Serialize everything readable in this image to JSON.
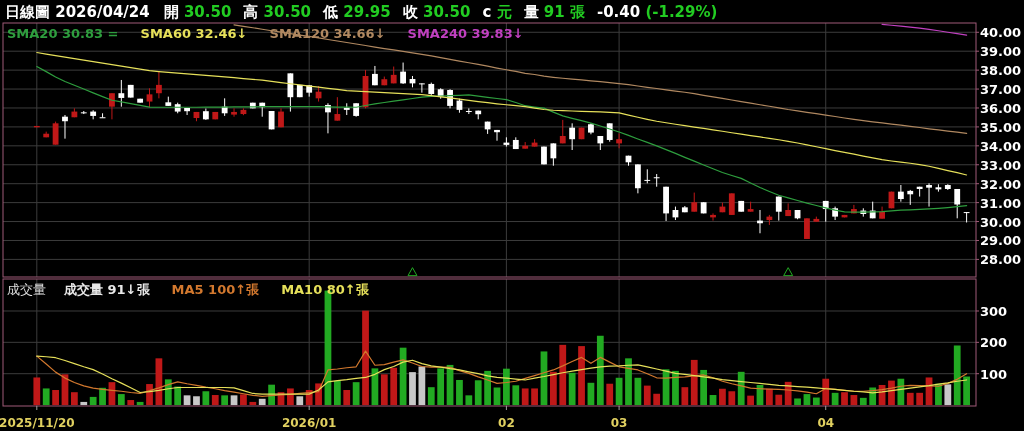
{
  "chart_data": [
    {
      "type": "candlestick",
      "title": "日線圖 2026/04/24",
      "annotations": [
        "開 30.50",
        "高 30.50",
        "低 29.95",
        "收 30.50",
        "c 元",
        "量 91 張",
        "-0.40 (-1.29%)"
      ],
      "categories": [
        "2025/11/20",
        null,
        null,
        null,
        null,
        null,
        null,
        null,
        null,
        null,
        null,
        null,
        null,
        null,
        null,
        null,
        null,
        null,
        null,
        null,
        null,
        null,
        null,
        null,
        null,
        null,
        null,
        null,
        null,
        "2026/01",
        null,
        null,
        null,
        null,
        null,
        null,
        null,
        null,
        null,
        null,
        null,
        null,
        null,
        null,
        null,
        null,
        null,
        null,
        null,
        null,
        "02",
        null,
        null,
        null,
        null,
        null,
        null,
        null,
        null,
        null,
        null,
        null,
        "03",
        null,
        null,
        null,
        null,
        null,
        null,
        null,
        null,
        null,
        null,
        null,
        null,
        null,
        null,
        null,
        null,
        null,
        null,
        null,
        null,
        null,
        "04",
        null,
        null,
        null,
        null,
        null,
        null,
        null,
        null,
        null,
        null,
        null,
        null,
        null,
        null,
        null
      ],
      "ohlc": [
        [
          34.98,
          35.05,
          34.98,
          35.05
        ],
        [
          34.45,
          34.75,
          34.45,
          34.64
        ],
        [
          34.06,
          35.28,
          34.06,
          35.19
        ],
        [
          35.54,
          35.63,
          34.38,
          35.3
        ],
        [
          35.51,
          35.98,
          35.51,
          35.81
        ],
        [
          35.77,
          35.84,
          35.68,
          35.75
        ],
        [
          35.81,
          35.88,
          35.4,
          35.58
        ],
        [
          35.51,
          35.72,
          35.5,
          35.5
        ],
        [
          36.07,
          36.78,
          35.4,
          36.78
        ],
        [
          36.78,
          37.48,
          36.07,
          36.53
        ],
        [
          37.22,
          37.22,
          36.55,
          36.55
        ],
        [
          36.49,
          36.49,
          36.28,
          36.28
        ],
        [
          36.34,
          37.04,
          36.04,
          36.72
        ],
        [
          36.78,
          37.92,
          36.51,
          37.22
        ],
        [
          36.3,
          36.6,
          36.11,
          36.11
        ],
        [
          36.2,
          36.28,
          35.72,
          35.81
        ],
        [
          36.0,
          36.0,
          35.63,
          35.83
        ],
        [
          35.47,
          35.79,
          35.3,
          35.79
        ],
        [
          35.83,
          35.97,
          35.37,
          35.4
        ],
        [
          35.4,
          35.79,
          35.4,
          35.79
        ],
        [
          36.07,
          36.51,
          35.58,
          35.72
        ],
        [
          35.65,
          35.98,
          35.54,
          35.79
        ],
        [
          35.68,
          35.98,
          35.62,
          35.9
        ],
        [
          36.28,
          36.28,
          35.98,
          35.98
        ],
        [
          36.28,
          36.28,
          35.54,
          36.04
        ],
        [
          35.84,
          35.84,
          34.87,
          34.87
        ],
        [
          34.98,
          35.98,
          34.98,
          35.81
        ],
        [
          37.83,
          37.83,
          35.81,
          36.57
        ],
        [
          37.22,
          37.22,
          36.57,
          36.57
        ],
        [
          37.2,
          37.2,
          36.6,
          36.81
        ],
        [
          36.51,
          37.16,
          36.34,
          36.86
        ],
        [
          36.16,
          36.25,
          34.66,
          35.77
        ],
        [
          35.33,
          36.57,
          35.33,
          35.68
        ],
        [
          36.02,
          36.25,
          35.63,
          35.9
        ],
        [
          36.25,
          36.25,
          35.54,
          35.58
        ],
        [
          36.04,
          38.01,
          35.98,
          37.69
        ],
        [
          37.8,
          38.22,
          37.2,
          37.2
        ],
        [
          37.2,
          37.66,
          37.2,
          37.52
        ],
        [
          37.3,
          38.19,
          37.3,
          37.75
        ],
        [
          37.92,
          38.4,
          37.27,
          37.3
        ],
        [
          37.53,
          37.69,
          37.09,
          37.3
        ],
        [
          37.3,
          37.3,
          36.81,
          37.3
        ],
        [
          37.27,
          37.34,
          36.69,
          36.74
        ],
        [
          36.99,
          37.04,
          36.49,
          36.6
        ],
        [
          36.95,
          36.99,
          35.98,
          36.11
        ],
        [
          36.39,
          36.49,
          35.75,
          35.9
        ],
        [
          35.84,
          35.98,
          35.68,
          35.84
        ],
        [
          35.86,
          35.86,
          35.4,
          35.67
        ],
        [
          35.28,
          35.28,
          34.63,
          34.87
        ],
        [
          34.84,
          34.84,
          34.27,
          34.72
        ],
        [
          34.17,
          34.45,
          33.96,
          34.05
        ],
        [
          34.31,
          34.45,
          33.83,
          33.83
        ],
        [
          33.85,
          34.2,
          33.85,
          34.01
        ],
        [
          33.96,
          34.35,
          33.96,
          34.17
        ],
        [
          33.96,
          33.96,
          33.02,
          33.02
        ],
        [
          34.13,
          34.13,
          32.95,
          33.34
        ],
        [
          34.13,
          35.37,
          34.13,
          34.52
        ],
        [
          34.96,
          35.19,
          33.78,
          34.35
        ],
        [
          34.35,
          34.96,
          34.35,
          34.96
        ],
        [
          35.14,
          35.19,
          34.61,
          34.7
        ],
        [
          34.52,
          34.52,
          33.78,
          34.13
        ],
        [
          35.19,
          35.19,
          34.22,
          34.31
        ],
        [
          34.13,
          34.66,
          33.87,
          34.35
        ],
        [
          33.48,
          33.48,
          32.95,
          33.13
        ],
        [
          33.02,
          33.02,
          31.49,
          31.76
        ],
        [
          32.2,
          32.76,
          32.02,
          32.2
        ],
        [
          32.34,
          32.51,
          31.84,
          32.34
        ],
        [
          31.84,
          31.84,
          30.03,
          30.43
        ],
        [
          30.61,
          30.79,
          30.08,
          30.22
        ],
        [
          30.75,
          30.82,
          30.49,
          30.49
        ],
        [
          30.52,
          31.53,
          30.52,
          31.02
        ],
        [
          31.02,
          31.02,
          30.43,
          30.43
        ],
        [
          30.22,
          30.43,
          30.05,
          30.35
        ],
        [
          30.49,
          31.0,
          30.49,
          30.79
        ],
        [
          30.35,
          31.49,
          30.35,
          31.49
        ],
        [
          31.09,
          31.09,
          30.52,
          30.52
        ],
        [
          30.52,
          31.05,
          30.52,
          30.66
        ],
        [
          30.05,
          30.61,
          29.38,
          29.91
        ],
        [
          30.08,
          30.35,
          29.82,
          30.26
        ],
        [
          31.32,
          31.32,
          30.05,
          30.52
        ],
        [
          30.29,
          30.96,
          30.29,
          30.61
        ],
        [
          30.61,
          30.61,
          30.12,
          30.17
        ],
        [
          29.08,
          30.17,
          29.08,
          30.17
        ],
        [
          29.99,
          30.26,
          29.99,
          30.14
        ],
        [
          31.09,
          31.09,
          29.99,
          30.66
        ],
        [
          30.7,
          30.79,
          30.08,
          30.26
        ],
        [
          30.22,
          30.35,
          30.22,
          30.35
        ],
        [
          30.43,
          30.88,
          30.43,
          30.66
        ],
        [
          30.58,
          30.7,
          30.26,
          30.4
        ],
        [
          30.58,
          31.05,
          30.17,
          30.17
        ],
        [
          30.15,
          30.79,
          30.15,
          30.52
        ],
        [
          30.7,
          31.58,
          30.7,
          31.58
        ],
        [
          31.58,
          31.93,
          31.05,
          31.19
        ],
        [
          31.62,
          31.67,
          30.88,
          31.44
        ],
        [
          31.84,
          31.84,
          31.32,
          31.72
        ],
        [
          31.93,
          32.02,
          30.79,
          31.79
        ],
        [
          31.81,
          31.97,
          31.58,
          31.7
        ],
        [
          31.93,
          31.97,
          31.67,
          31.72
        ],
        [
          31.72,
          31.72,
          30.17,
          30.9
        ],
        [
          30.5,
          30.5,
          29.95,
          30.5
        ]
      ],
      "colors": [
        "#c01818",
        "#c01818",
        "#c01818",
        "#ffffff",
        "#c01818",
        "#ffffff",
        "#ffffff",
        "#ffffff",
        "#c01818",
        "#ffffff",
        "#ffffff",
        "#ffffff",
        "#c01818",
        "#c01818",
        "#ffffff",
        "#ffffff",
        "#ffffff",
        "#c01818",
        "#ffffff",
        "#c01818",
        "#ffffff",
        "#c01818",
        "#c01818",
        "#ffffff",
        "#ffffff",
        "#ffffff",
        "#c01818",
        "#ffffff",
        "#ffffff",
        "#ffffff",
        "#c01818",
        "#ffffff",
        "#c01818",
        "#ffffff",
        "#ffffff",
        "#c01818",
        "#ffffff",
        "#c01818",
        "#c01818",
        "#ffffff",
        "#ffffff",
        "#ffffff",
        "#ffffff",
        "#ffffff",
        "#ffffff",
        "#ffffff",
        "#ffffff",
        "#ffffff",
        "#ffffff",
        "#ffffff",
        "#ffffff",
        "#ffffff",
        "#c01818",
        "#c01818",
        "#ffffff",
        "#ffffff",
        "#c01818",
        "#ffffff",
        "#c01818",
        "#ffffff",
        "#ffffff",
        "#ffffff",
        "#c01818",
        "#ffffff",
        "#ffffff",
        "#ffffff",
        "#ffffff",
        "#ffffff",
        "#ffffff",
        "#ffffff",
        "#c01818",
        "#ffffff",
        "#c01818",
        "#c01818",
        "#c01818",
        "#ffffff",
        "#c01818",
        "#ffffff",
        "#c01818",
        "#ffffff",
        "#c01818",
        "#ffffff",
        "#c01818",
        "#c01818",
        "#ffffff",
        "#ffffff",
        "#c01818",
        "#c01818",
        "#ffffff",
        "#ffffff",
        "#c01818",
        "#c01818",
        "#ffffff",
        "#ffffff",
        "#ffffff",
        "#ffffff",
        "#ffffff",
        "#ffffff",
        "#ffffff",
        "#ffffff"
      ],
      "series": [
        {
          "name": "SMA20 30.83 =",
          "type": "line",
          "color": "#2e9e3e",
          "values": [
            38.19,
            37.92,
            37.64,
            37.4,
            37.2,
            37.0,
            36.8,
            36.6,
            36.41,
            36.32,
            36.23,
            36.14,
            36.05,
            36.04,
            36.04,
            36.04,
            36.04,
            36.04,
            36.05,
            36.05,
            36.05,
            36.06,
            36.06,
            36.06,
            36.07,
            36.07,
            36.07,
            36.07,
            36.07,
            36.07,
            36.07,
            36.06,
            36.05,
            36.05,
            36.04,
            36.13,
            36.22,
            36.29,
            36.36,
            36.43,
            36.5,
            36.57,
            36.61,
            36.63,
            36.65,
            36.67,
            36.69,
            36.63,
            36.56,
            36.5,
            36.44,
            36.29,
            36.12,
            36.05,
            35.99,
            35.78,
            35.58,
            35.45,
            35.33,
            35.2,
            35.05,
            34.89,
            34.73,
            34.55,
            34.36,
            34.18,
            34.0,
            33.8,
            33.6,
            33.39,
            33.19,
            32.99,
            32.79,
            32.59,
            32.43,
            32.28,
            32.04,
            31.8,
            31.59,
            31.39,
            31.25,
            31.11,
            30.97,
            30.85,
            30.72,
            30.6,
            30.51,
            30.5,
            30.5,
            30.51,
            30.52,
            30.56,
            30.6,
            30.62,
            30.64,
            30.67,
            30.7,
            30.74,
            30.79,
            30.84
          ]
        },
        {
          "name": "SMA60 32.46↓",
          "type": "line",
          "color": "#e6e05a",
          "values": [
            38.93,
            38.85,
            38.77,
            38.69,
            38.61,
            38.53,
            38.45,
            38.37,
            38.29,
            38.21,
            38.13,
            38.05,
            37.97,
            37.92,
            37.88,
            37.84,
            37.8,
            37.76,
            37.72,
            37.68,
            37.64,
            37.6,
            37.55,
            37.51,
            37.47,
            37.41,
            37.34,
            37.28,
            37.22,
            37.16,
            37.1,
            37.04,
            36.98,
            36.92,
            36.89,
            36.86,
            36.84,
            36.81,
            36.78,
            36.76,
            36.73,
            36.71,
            36.65,
            36.59,
            36.53,
            36.47,
            36.4,
            36.34,
            36.28,
            36.22,
            36.17,
            36.12,
            36.07,
            35.99,
            35.92,
            35.88,
            35.86,
            35.84,
            35.82,
            35.81,
            35.79,
            35.77,
            35.74,
            35.62,
            35.51,
            35.4,
            35.3,
            35.22,
            35.14,
            35.07,
            34.99,
            34.92,
            34.84,
            34.77,
            34.69,
            34.62,
            34.54,
            34.47,
            34.39,
            34.32,
            34.24,
            34.15,
            34.05,
            33.95,
            33.85,
            33.75,
            33.65,
            33.56,
            33.46,
            33.36,
            33.27,
            33.2,
            33.14,
            33.08,
            33.01,
            32.92,
            32.81,
            32.69,
            32.58,
            32.46
          ]
        },
        {
          "name": "SMA120 34.66↓",
          "type": "line",
          "color": "#b08860",
          "values": [
            null,
            null,
            null,
            null,
            null,
            null,
            null,
            null,
            null,
            null,
            null,
            null,
            null,
            null,
            null,
            null,
            null,
            null,
            null,
            null,
            null,
            40.39,
            40.31,
            40.24,
            40.16,
            40.08,
            40.01,
            39.93,
            39.85,
            39.78,
            39.7,
            39.62,
            39.54,
            39.46,
            39.38,
            39.3,
            39.22,
            39.14,
            39.07,
            38.99,
            38.91,
            38.83,
            38.75,
            38.66,
            38.57,
            38.48,
            38.39,
            38.3,
            38.21,
            38.11,
            38.02,
            37.93,
            37.83,
            37.77,
            37.68,
            37.62,
            37.57,
            37.52,
            37.48,
            37.43,
            37.39,
            37.34,
            37.29,
            37.23,
            37.16,
            37.09,
            37.03,
            36.96,
            36.89,
            36.83,
            36.76,
            36.67,
            36.59,
            36.51,
            36.42,
            36.34,
            36.26,
            36.17,
            36.09,
            36.01,
            35.92,
            35.85,
            35.77,
            35.7,
            35.62,
            35.55,
            35.47,
            35.4,
            35.33,
            35.27,
            35.21,
            35.15,
            35.09,
            35.03,
            34.97,
            34.9,
            34.84,
            34.78,
            34.72,
            34.66
          ]
        },
        {
          "name": "SMA240 39.83↓",
          "type": "line",
          "color": "#c040c0",
          "values": [
            null,
            null,
            null,
            null,
            null,
            null,
            null,
            null,
            null,
            null,
            null,
            null,
            null,
            null,
            null,
            null,
            null,
            null,
            null,
            null,
            null,
            null,
            null,
            null,
            null,
            null,
            null,
            null,
            null,
            null,
            null,
            null,
            null,
            null,
            null,
            null,
            null,
            null,
            null,
            null,
            null,
            null,
            null,
            null,
            null,
            null,
            null,
            null,
            null,
            null,
            null,
            null,
            null,
            null,
            null,
            null,
            null,
            null,
            null,
            null,
            null,
            null,
            null,
            null,
            null,
            null,
            null,
            null,
            null,
            null,
            null,
            null,
            null,
            null,
            null,
            null,
            null,
            null,
            null,
            null,
            null,
            null,
            null,
            null,
            null,
            null,
            null,
            null,
            null,
            null,
            40.42,
            40.37,
            40.32,
            40.27,
            40.22,
            40.15,
            40.08,
            40.0,
            39.93,
            39.85
          ]
        },
        {
          "type": "scatter",
          "color": "#22aa22",
          "marker": "triangle",
          "values": [
            null,
            null,
            null,
            null,
            null,
            null,
            null,
            null,
            null,
            null,
            null,
            null,
            null,
            null,
            null,
            null,
            null,
            null,
            null,
            null,
            null,
            null,
            null,
            null,
            null,
            null,
            null,
            null,
            null,
            null,
            null,
            null,
            null,
            null,
            null,
            null,
            null,
            null,
            null,
            null,
            27.3,
            null,
            null,
            null,
            null,
            null,
            null,
            null,
            null,
            null,
            null,
            null,
            null,
            null,
            null,
            null,
            null,
            null,
            null,
            null,
            null,
            null,
            null,
            null,
            null,
            null,
            null,
            null,
            null,
            null,
            null,
            null,
            null,
            null,
            null,
            null,
            null,
            null,
            null,
            null,
            27.3,
            null,
            null,
            null,
            null,
            null,
            null,
            null,
            null,
            null,
            null,
            null,
            null,
            null,
            null,
            null,
            null,
            null,
            null,
            null
          ]
        }
      ],
      "ylim": [
        27.07,
        40.49
      ],
      "yticks": [
        {
          "value": 28,
          "label": "28.00"
        },
        {
          "value": 29,
          "label": "29.00"
        },
        {
          "value": 30,
          "label": "30.00"
        },
        {
          "value": 31,
          "label": "31.00"
        },
        {
          "value": 32,
          "label": "32.00"
        },
        {
          "value": 33,
          "label": "33.00"
        },
        {
          "value": 34,
          "label": "34.00"
        },
        {
          "value": 35,
          "label": "35.00"
        },
        {
          "value": 36,
          "label": "36.00"
        },
        {
          "value": 37,
          "label": "37.00"
        },
        {
          "value": 38,
          "label": "38.00"
        },
        {
          "value": 39,
          "label": "39.00"
        },
        {
          "value": 40,
          "label": "40.00"
        }
      ],
      "grid": true,
      "legend": "top left",
      "tick_labels": "y"
    },
    {
      "type": "bar",
      "title": "成交量",
      "categories": [
        "2025/11/20",
        null,
        null,
        null,
        null,
        null,
        null,
        null,
        null,
        null,
        null,
        null,
        null,
        null,
        null,
        null,
        null,
        null,
        null,
        null,
        null,
        null,
        null,
        null,
        null,
        null,
        null,
        null,
        null,
        "2026/01",
        null,
        null,
        null,
        null,
        null,
        null,
        null,
        null,
        null,
        null,
        null,
        null,
        null,
        null,
        null,
        null,
        null,
        null,
        null,
        null,
        "02",
        null,
        null,
        null,
        null,
        null,
        null,
        null,
        null,
        null,
        null,
        null,
        "03",
        null,
        null,
        null,
        null,
        null,
        null,
        null,
        null,
        null,
        null,
        null,
        null,
        null,
        null,
        null,
        null,
        null,
        null,
        null,
        null,
        null,
        "04",
        null,
        null,
        null,
        null,
        null,
        null,
        null,
        null,
        null,
        null,
        null,
        null,
        null,
        null,
        null
      ],
      "series": [
        {
          "name": "成交量 91↓張",
          "values": [
            88,
            53,
            48,
            98,
            41,
            10,
            26,
            55,
            73,
            35,
            16,
            10,
            67,
            149,
            82,
            59,
            31,
            28,
            44,
            32,
            31,
            31,
            34,
            10,
            20,
            65,
            41,
            53,
            28,
            48,
            69,
            365,
            77,
            48,
            73,
            301,
            117,
            98,
            119,
            183,
            105,
            123,
            57,
            117,
            128,
            80,
            31,
            79,
            109,
            56,
            116,
            63,
            53,
            53,
            171,
            106,
            192,
            103,
            188,
            71,
            221,
            68,
            87,
            149,
            87,
            62,
            36,
            114,
            109,
            57,
            144,
            112,
            32,
            52,
            44,
            106,
            30,
            64,
            52,
            33,
            74,
            21,
            35,
            24,
            84,
            39,
            41,
            32,
            23,
            56,
            64,
            78,
            84,
            39,
            39,
            88,
            68,
            66,
            190,
            91
          ],
          "colors": [
            "#c01818",
            "#22aa22",
            "#c01818",
            "#c01818",
            "#c01818",
            "#c8c8c8",
            "#22aa22",
            "#22aa22",
            "#c01818",
            "#22aa22",
            "#c01818",
            "#22aa22",
            "#c01818",
            "#c01818",
            "#22aa22",
            "#22aa22",
            "#c8c8c8",
            "#c8c8c8",
            "#22aa22",
            "#c01818",
            "#22aa22",
            "#c8c8c8",
            "#c01818",
            "#c01818",
            "#c8c8c8",
            "#22aa22",
            "#c01818",
            "#c01818",
            "#c8c8c8",
            "#c01818",
            "#c01818",
            "#22aa22",
            "#22aa22",
            "#c01818",
            "#22aa22",
            "#c01818",
            "#22aa22",
            "#c01818",
            "#c01818",
            "#22aa22",
            "#c8c8c8",
            "#c8c8c8",
            "#22aa22",
            "#22aa22",
            "#22aa22",
            "#22aa22",
            "#22aa22",
            "#22aa22",
            "#22aa22",
            "#22aa22",
            "#22aa22",
            "#22aa22",
            "#c01818",
            "#c01818",
            "#22aa22",
            "#c01818",
            "#c01818",
            "#22aa22",
            "#c01818",
            "#22aa22",
            "#22aa22",
            "#c01818",
            "#22aa22",
            "#22aa22",
            "#22aa22",
            "#c01818",
            "#c01818",
            "#22aa22",
            "#22aa22",
            "#c01818",
            "#c01818",
            "#22aa22",
            "#22aa22",
            "#c01818",
            "#c01818",
            "#22aa22",
            "#c01818",
            "#22aa22",
            "#c01818",
            "#c01818",
            "#c01818",
            "#22aa22",
            "#22aa22",
            "#22aa22",
            "#c01818",
            "#22aa22",
            "#c01818",
            "#c01818",
            "#22aa22",
            "#22aa22",
            "#c01818",
            "#c01818",
            "#22aa22",
            "#c01818",
            "#c01818",
            "#c01818",
            "#22aa22",
            "#c8c8c8",
            "#22aa22",
            "#22aa22"
          ]
        },
        {
          "name": "MA5 100↑張",
          "type": "line",
          "color": "#d2782e",
          "values": [
            156,
            131,
            105,
            86,
            72,
            61,
            54,
            50,
            47,
            44,
            40,
            37,
            46,
            55,
            65,
            74,
            68,
            63,
            57,
            52,
            46,
            41,
            36,
            31,
            28,
            30,
            32,
            34,
            37,
            40,
            43,
            112,
            115,
            119,
            122,
            172,
            127,
            129,
            137,
            144,
            134,
            123,
            121,
            121,
            120,
            110,
            101,
            90,
            80,
            69,
            72,
            76,
            85,
            94,
            103,
            112,
            125,
            139,
            152,
            133,
            152,
            137,
            122,
            117,
            112,
            100,
            87,
            86,
            88,
            90,
            93,
            96,
            87,
            76,
            68,
            61,
            54,
            52,
            51,
            50,
            48,
            45,
            41,
            36,
            53,
            50,
            47,
            44,
            44,
            46,
            49,
            54,
            60,
            63,
            62,
            61,
            60,
            69,
            82,
            100
          ]
        },
        {
          "name": "MA10 80↑張",
          "type": "line",
          "color": "#e6e05a",
          "values": [
            156,
            154,
            151,
            142,
            132,
            122,
            113,
            99,
            84,
            70,
            55,
            40,
            43,
            47,
            52,
            56,
            56,
            56,
            56,
            56,
            56,
            55,
            46,
            37,
            35,
            35,
            35,
            35,
            35,
            35,
            48,
            74,
            78,
            81,
            85,
            88,
            98,
            113,
            123,
            137,
            143,
            132,
            125,
            121,
            116,
            112,
            106,
            100,
            93,
            88,
            86,
            83,
            80,
            86,
            91,
            97,
            103,
            108,
            113,
            118,
            122,
            124,
            125,
            127,
            128,
            122,
            115,
            108,
            101,
            98,
            94,
            90,
            86,
            81,
            78,
            75,
            72,
            69,
            66,
            63,
            61,
            59,
            57,
            55,
            52,
            50,
            47,
            44,
            42,
            39,
            42,
            46,
            50,
            54,
            58,
            62,
            67,
            71,
            76,
            80
          ]
        }
      ],
      "ylim": [
        -3,
        402
      ],
      "yticks": [
        100,
        200,
        300
      ],
      "grid": true,
      "legend": "top left"
    }
  ]
}
